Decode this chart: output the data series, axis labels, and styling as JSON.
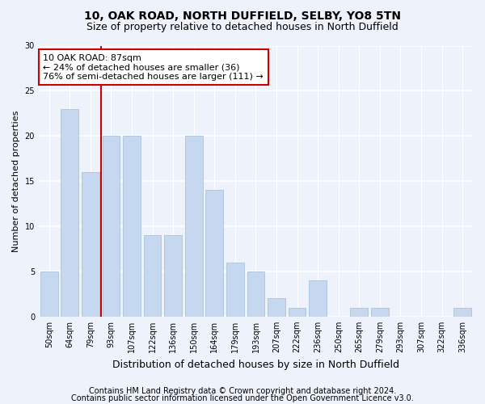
{
  "title1": "10, OAK ROAD, NORTH DUFFIELD, SELBY, YO8 5TN",
  "title2": "Size of property relative to detached houses in North Duffield",
  "xlabel": "Distribution of detached houses by size in North Duffield",
  "ylabel": "Number of detached properties",
  "categories": [
    "50sqm",
    "64sqm",
    "79sqm",
    "93sqm",
    "107sqm",
    "122sqm",
    "136sqm",
    "150sqm",
    "164sqm",
    "179sqm",
    "193sqm",
    "207sqm",
    "222sqm",
    "236sqm",
    "250sqm",
    "265sqm",
    "279sqm",
    "293sqm",
    "307sqm",
    "322sqm",
    "336sqm"
  ],
  "values": [
    5,
    23,
    16,
    20,
    20,
    9,
    9,
    20,
    14,
    6,
    5,
    2,
    1,
    4,
    0,
    1,
    1,
    0,
    0,
    0,
    1
  ],
  "bar_color": "#c5d8f0",
  "bar_edge_color": "#a8c4e0",
  "vline_color": "#cc0000",
  "annotation_line1": "10 OAK ROAD: 87sqm",
  "annotation_line2": "← 24% of detached houses are smaller (36)",
  "annotation_line3": "76% of semi-detached houses are larger (111) →",
  "annotation_box_color": "#ffffff",
  "annotation_box_edge": "#cc0000",
  "ylim": [
    0,
    30
  ],
  "yticks": [
    0,
    5,
    10,
    15,
    20,
    25,
    30
  ],
  "footer1": "Contains HM Land Registry data © Crown copyright and database right 2024.",
  "footer2": "Contains public sector information licensed under the Open Government Licence v3.0.",
  "bg_color": "#edf2fb",
  "plot_bg_color": "#edf2fb",
  "grid_color": "#ffffff",
  "title1_fontsize": 10,
  "title2_fontsize": 9,
  "xlabel_fontsize": 9,
  "ylabel_fontsize": 8,
  "tick_fontsize": 7,
  "footer_fontsize": 7,
  "annot_fontsize": 8
}
